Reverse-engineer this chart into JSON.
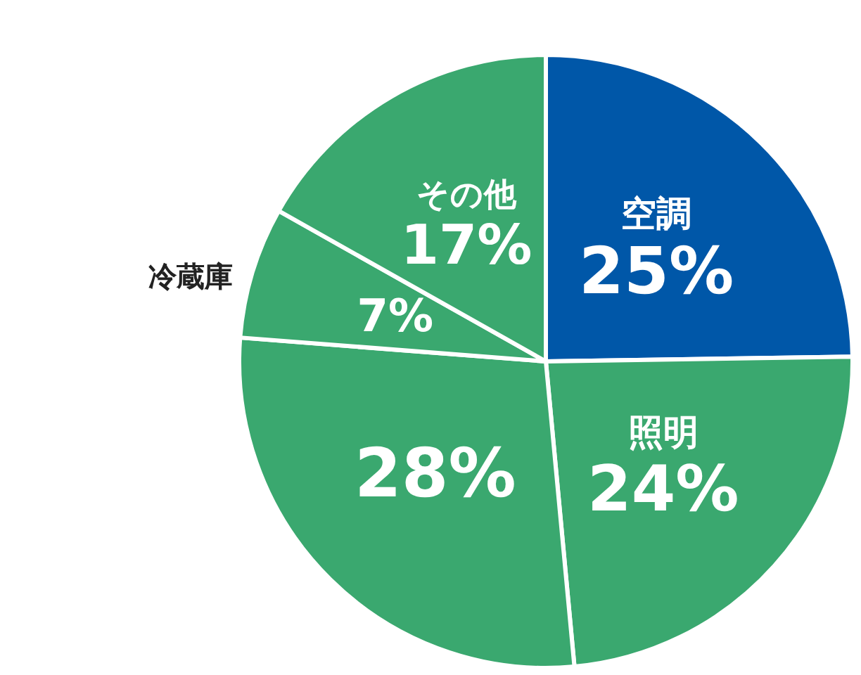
{
  "chart_data": {
    "type": "pie",
    "categories": [
      "空調",
      "照明",
      null,
      "冷蔵庫",
      "その他"
    ],
    "values": [
      25,
      24,
      28,
      7,
      17
    ],
    "colors": [
      "#0057a8",
      "#3aa86f",
      "#3aa86f",
      "#3aa86f",
      "#3aa86f"
    ],
    "value_labels": [
      "25%",
      "24%",
      "28%",
      "7%",
      "17%"
    ]
  }
}
